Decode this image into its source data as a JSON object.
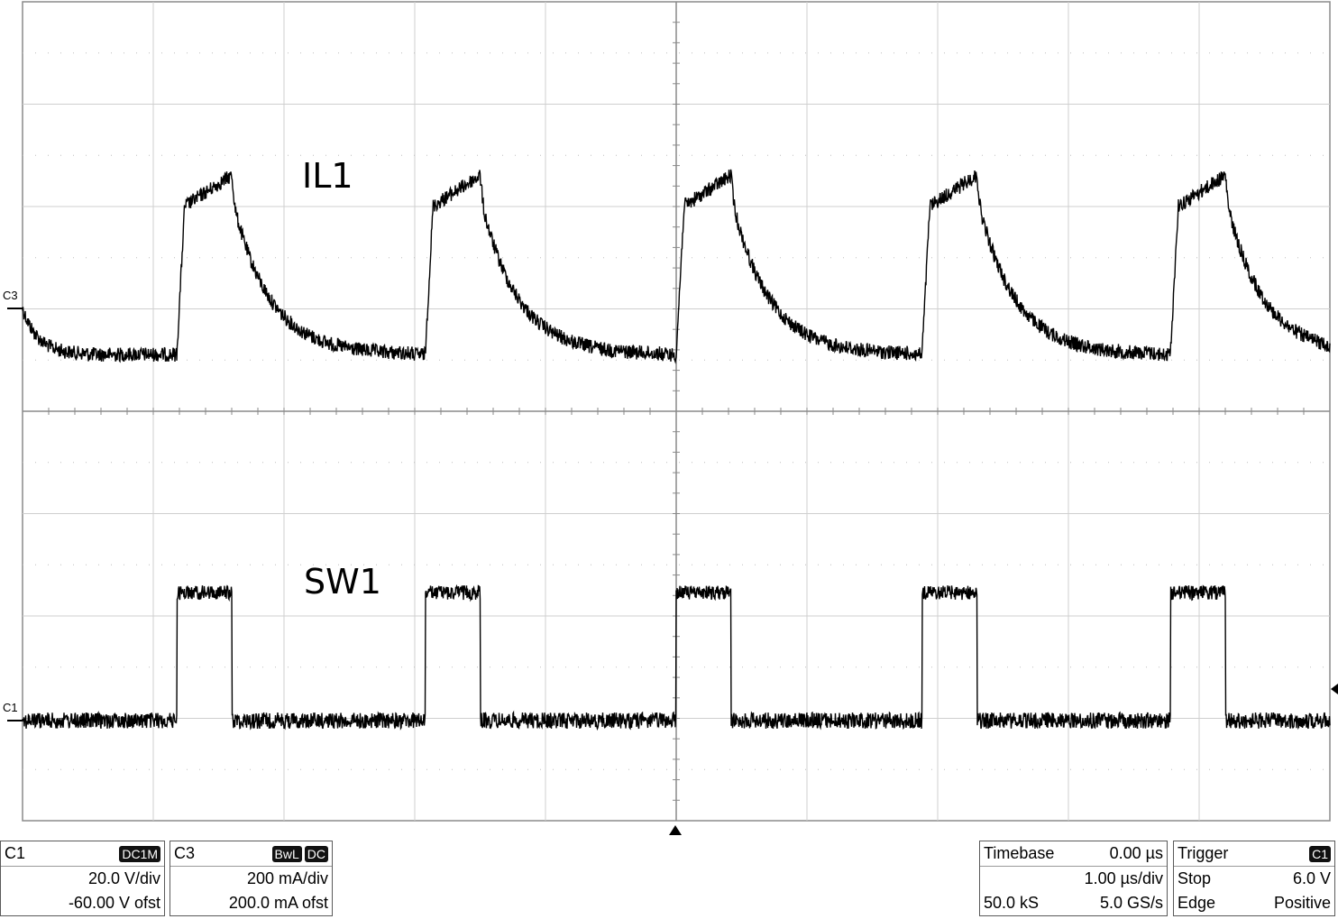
{
  "chart_data": {
    "type": "line",
    "title": "",
    "x_axis": {
      "divisions": 10,
      "unit_per_div": "1.00 µs/div",
      "range_us": [
        -5,
        5
      ]
    },
    "grid": true,
    "series": [
      {
        "name": "IL1",
        "channel": "C3",
        "unit": "divisions",
        "period_us": 1.89,
        "description_points": [
          {
            "t_us": -3.9,
            "y_div": -0.45
          },
          {
            "t_us": -3.85,
            "y_div": 1.0
          },
          {
            "t_us": -3.45,
            "y_div": 1.3
          },
          {
            "t_us": -3.4,
            "y_div": 1.1
          },
          {
            "t_us": -2.9,
            "y_div": -0.3
          },
          {
            "t_us": -2.0,
            "y_div": -0.45
          }
        ],
        "levels_div": {
          "baseline": -0.45,
          "peak": 1.3,
          "step_top": 1.0
        }
      },
      {
        "name": "SW1",
        "channel": "C1",
        "unit": "divisions",
        "period_us": 1.89,
        "levels_div": {
          "low": 0.0,
          "high": 1.25
        },
        "pulse_width_us": 0.42
      }
    ],
    "pulse_rise_times_us": [
      -3.82,
      -1.92,
      0.0,
      1.88,
      3.78
    ],
    "labels": [
      "IL1",
      "SW1"
    ]
  },
  "channel_markers": {
    "c3": "C3",
    "c1": "C1"
  },
  "info": {
    "c1": {
      "name": "C1",
      "coupling": "DC1M",
      "scale": "20.0 V/div",
      "offset": "-60.00 V ofst"
    },
    "c3": {
      "name": "C3",
      "bw": "BwL",
      "coupling": "DC",
      "scale": "200 mA/div",
      "offset": "200.0 mA ofst"
    },
    "timebase": {
      "title": "Timebase",
      "delay": "0.00 µs",
      "scale": "1.00 µs/div",
      "samples": "50.0 kS",
      "rate": "5.0 GS/s"
    },
    "trigger": {
      "title": "Trigger",
      "source": "C1",
      "mode": "Stop",
      "level": "6.0 V",
      "type": "Edge",
      "slope": "Positive"
    }
  }
}
